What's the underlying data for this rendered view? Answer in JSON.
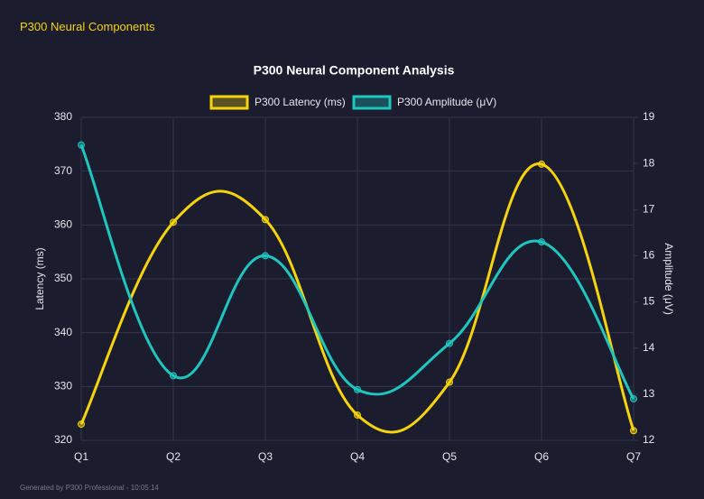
{
  "header": {
    "title": "P300 Neural Components"
  },
  "footer": {
    "text": "Generated by P300 Professional - 10:05:14"
  },
  "chart_data": {
    "type": "line",
    "title": "P300 Neural Component Analysis",
    "y_label": "Latency (ms)",
    "y2_label": "Amplitude (μV)",
    "categories": [
      "Q1",
      "Q2",
      "Q3",
      "Q4",
      "Q5",
      "Q6",
      "Q7"
    ],
    "series": [
      {
        "name": "P300 Latency (ms)",
        "color": "#f5d30f",
        "values": [
          323,
          360.5,
          361,
          324.7,
          330.8,
          371.3,
          321.8
        ]
      },
      {
        "name": "P300 Amplitude (μV)",
        "color": "#1fc6bf",
        "axis": "y2",
        "values": [
          18.4,
          13.4,
          16.0,
          13.1,
          14.1,
          16.3,
          12.9
        ]
      }
    ],
    "ylim": [
      320,
      380
    ],
    "yticks": [
      320,
      330,
      340,
      350,
      360,
      370,
      380
    ],
    "y2lim": [
      12,
      19
    ],
    "y2ticks": [
      12,
      13,
      14,
      15,
      16,
      17,
      18,
      19
    ],
    "grid": true
  }
}
